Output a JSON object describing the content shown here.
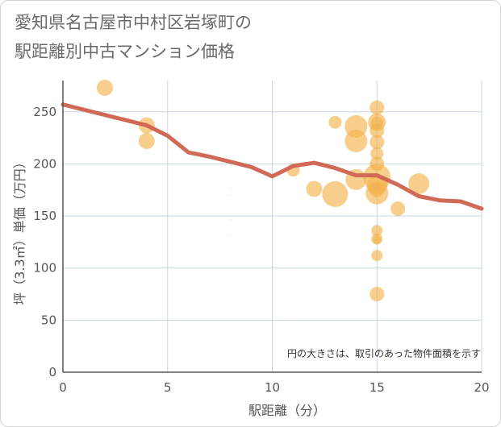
{
  "title": {
    "line1": "愛知県名古屋市中村区岩塚町の",
    "line2": "駅距離別中古マンション価格"
  },
  "colors": {
    "bubble": "#f2b44e",
    "line": "#d06a56",
    "grid": "#c7d6e6",
    "axis": "#555555"
  },
  "chart_data": {
    "type": "scatter",
    "title": "愛知県名古屋市中村区岩塚町の駅距離別中古マンション価格",
    "xlabel": "駅距離（分）",
    "ylabel": "坪（3.3㎡）単価（万円）",
    "xlim": [
      0,
      20
    ],
    "ylim": [
      0,
      280
    ],
    "xticks": [
      0,
      5,
      10,
      15,
      20
    ],
    "yticks": [
      0,
      50,
      100,
      150,
      200,
      250
    ],
    "grid": true,
    "note": "円の大きさは、取引のあった物件面積を示す",
    "points": [
      {
        "x": 2,
        "y": 273,
        "size": 10
      },
      {
        "x": 4,
        "y": 237,
        "size": 10
      },
      {
        "x": 4,
        "y": 222,
        "size": 10
      },
      {
        "x": 11,
        "y": 194,
        "size": 8
      },
      {
        "x": 12,
        "y": 176,
        "size": 10
      },
      {
        "x": 13,
        "y": 240,
        "size": 8
      },
      {
        "x": 13,
        "y": 171,
        "size": 16
      },
      {
        "x": 14,
        "y": 236,
        "size": 14
      },
      {
        "x": 14,
        "y": 222,
        "size": 14
      },
      {
        "x": 14,
        "y": 185,
        "size": 13
      },
      {
        "x": 15,
        "y": 254,
        "size": 9
      },
      {
        "x": 15,
        "y": 240,
        "size": 11
      },
      {
        "x": 15,
        "y": 239,
        "size": 8
      },
      {
        "x": 15,
        "y": 232,
        "size": 9
      },
      {
        "x": 15,
        "y": 221,
        "size": 9
      },
      {
        "x": 15,
        "y": 210,
        "size": 8
      },
      {
        "x": 15,
        "y": 200,
        "size": 9
      },
      {
        "x": 15,
        "y": 187,
        "size": 17
      },
      {
        "x": 15,
        "y": 180,
        "size": 13
      },
      {
        "x": 15,
        "y": 175,
        "size": 9
      },
      {
        "x": 15,
        "y": 172,
        "size": 14
      },
      {
        "x": 15,
        "y": 136,
        "size": 7
      },
      {
        "x": 15,
        "y": 128,
        "size": 7
      },
      {
        "x": 15,
        "y": 127,
        "size": 5
      },
      {
        "x": 15,
        "y": 112,
        "size": 7
      },
      {
        "x": 15,
        "y": 75,
        "size": 9
      },
      {
        "x": 16,
        "y": 157,
        "size": 9
      },
      {
        "x": 17,
        "y": 181,
        "size": 13
      },
      {
        "x": 8,
        "y": 177,
        "size": 0.6
      },
      {
        "x": 8,
        "y": 170,
        "size": 0.6
      },
      {
        "x": 8,
        "y": 146,
        "size": 0.6
      },
      {
        "x": 8,
        "y": 132,
        "size": 0.6
      }
    ],
    "trend": [
      {
        "x": 0,
        "y": 257
      },
      {
        "x": 1,
        "y": 252
      },
      {
        "x": 2,
        "y": 247
      },
      {
        "x": 3,
        "y": 242
      },
      {
        "x": 4,
        "y": 237
      },
      {
        "x": 5,
        "y": 227
      },
      {
        "x": 6,
        "y": 211
      },
      {
        "x": 7,
        "y": 207
      },
      {
        "x": 8,
        "y": 202
      },
      {
        "x": 9,
        "y": 197
      },
      {
        "x": 10,
        "y": 188
      },
      {
        "x": 11,
        "y": 198
      },
      {
        "x": 12,
        "y": 201
      },
      {
        "x": 13,
        "y": 196
      },
      {
        "x": 14,
        "y": 189
      },
      {
        "x": 15,
        "y": 189
      },
      {
        "x": 16,
        "y": 180
      },
      {
        "x": 17,
        "y": 169
      },
      {
        "x": 18,
        "y": 165
      },
      {
        "x": 19,
        "y": 164
      },
      {
        "x": 20,
        "y": 157
      }
    ]
  }
}
